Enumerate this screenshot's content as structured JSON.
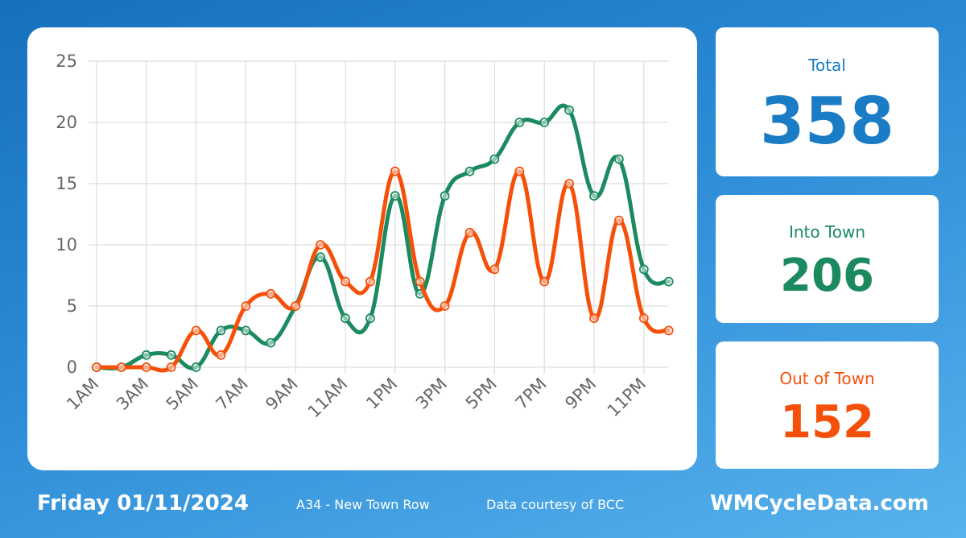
{
  "chart_data": {
    "type": "line",
    "title": "",
    "xlabel": "",
    "ylabel": "",
    "ylim": [
      0,
      25
    ],
    "yticks": [
      "0",
      "5",
      "10",
      "15",
      "20",
      "25"
    ],
    "grid": true,
    "legend": "none",
    "x": [
      "1AM",
      "2AM",
      "3AM",
      "4AM",
      "5AM",
      "6AM",
      "7AM",
      "8AM",
      "9AM",
      "10AM",
      "11AM",
      "12PM",
      "1PM",
      "2PM",
      "3PM",
      "4PM",
      "5PM",
      "6PM",
      "7PM",
      "8PM",
      "9PM",
      "10PM",
      "11PM",
      "12AM"
    ],
    "xtick_labels": [
      "1AM",
      "3AM",
      "5AM",
      "7AM",
      "9AM",
      "11AM",
      "1PM",
      "3PM",
      "5PM",
      "7PM",
      "9PM",
      "11PM"
    ],
    "series": [
      {
        "color": "#1b8a5e",
        "values": [
          0,
          0,
          1,
          1,
          0,
          3,
          3,
          2,
          5,
          9,
          4,
          4,
          14,
          6,
          14,
          16,
          17,
          20,
          20,
          21,
          14,
          17,
          8,
          7
        ]
      },
      {
        "color": "#f5500a",
        "values": [
          0,
          0,
          0,
          0,
          3,
          1,
          5,
          6,
          5,
          10,
          7,
          7,
          16,
          7,
          5,
          11,
          8,
          16,
          7,
          15,
          4,
          12,
          4,
          3
        ]
      }
    ]
  },
  "stats": {
    "total": {
      "label": "Total",
      "value": "358"
    },
    "into_town": {
      "label": "Into Town",
      "value": "206"
    },
    "out_of_town": {
      "label": "Out of Town",
      "value": "152"
    }
  },
  "footer": {
    "date": "Friday 01/11/2024",
    "location": "A34 - New Town Row",
    "credit": "Data courtesy of BCC",
    "site": "WMCycleData.com"
  },
  "colors": {
    "into_town": "#1b8a5e",
    "out_of_town": "#f5500a",
    "total": "#1a7cc4"
  }
}
